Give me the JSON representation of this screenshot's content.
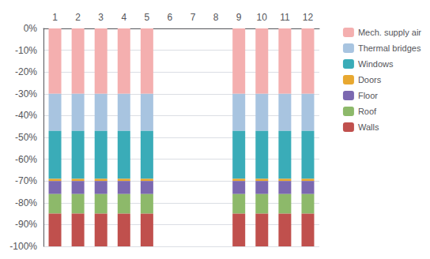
{
  "chart_data": {
    "type": "bar",
    "stacked": true,
    "grid": true,
    "legend": "right",
    "categories": [
      "1",
      "2",
      "3",
      "4",
      "5",
      "6",
      "7",
      "8",
      "9",
      "10",
      "11",
      "12"
    ],
    "series": [
      {
        "name": "Mech. supply air",
        "color": "#F4AFAF",
        "values": [
          -30,
          -30,
          -30,
          -30,
          -30,
          0,
          0,
          0,
          -30,
          -30,
          -30,
          -30
        ]
      },
      {
        "name": "Thermal bridges",
        "color": "#A8C4E0",
        "values": [
          -17,
          -17,
          -17,
          -17,
          -17,
          0,
          0,
          0,
          -17,
          -17,
          -17,
          -17
        ]
      },
      {
        "name": "Windows",
        "color": "#3AACB8",
        "values": [
          -22,
          -22,
          -22,
          -22,
          -22,
          0,
          0,
          0,
          -22,
          -22,
          -22,
          -22
        ]
      },
      {
        "name": "Doors",
        "color": "#E8A830",
        "values": [
          -1,
          -1,
          -1,
          -1,
          -1,
          0,
          0,
          0,
          -1,
          -1,
          -1,
          -1
        ]
      },
      {
        "name": "Floor",
        "color": "#7B68B0",
        "values": [
          -6,
          -6,
          -6,
          -6,
          -6,
          0,
          0,
          0,
          -6,
          -6,
          -6,
          -6
        ]
      },
      {
        "name": "Roof",
        "color": "#8DB96A",
        "values": [
          -9,
          -9,
          -9,
          -9,
          -9,
          0,
          0,
          0,
          -9,
          -9,
          -9,
          -9
        ]
      },
      {
        "name": "Walls",
        "color": "#C0504D",
        "values": [
          -15,
          -15,
          -15,
          -15,
          -15,
          0,
          0,
          0,
          -15,
          -15,
          -15,
          -15
        ]
      }
    ],
    "ylim": [
      -100,
      0
    ],
    "yticks": [
      {
        "value": 0,
        "label": "0%"
      },
      {
        "value": -10,
        "label": "-10%"
      },
      {
        "value": -20,
        "label": "-20%"
      },
      {
        "value": -30,
        "label": "-30%"
      },
      {
        "value": -40,
        "label": "-40%"
      },
      {
        "value": -50,
        "label": "-50%"
      },
      {
        "value": -60,
        "label": "-60%"
      },
      {
        "value": -70,
        "label": "-70%"
      },
      {
        "value": -80,
        "label": "-80%"
      },
      {
        "value": -90,
        "label": "-90%"
      },
      {
        "value": -100,
        "label": "-100%"
      }
    ]
  }
}
